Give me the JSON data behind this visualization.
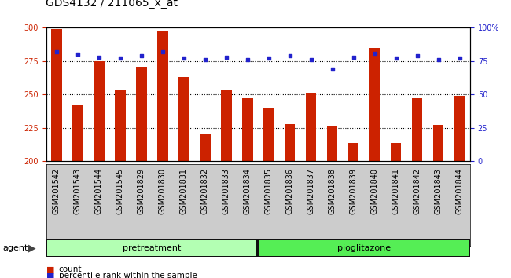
{
  "title": "GDS4132 / 211065_x_at",
  "samples": [
    "GSM201542",
    "GSM201543",
    "GSM201544",
    "GSM201545",
    "GSM201829",
    "GSM201830",
    "GSM201831",
    "GSM201832",
    "GSM201833",
    "GSM201834",
    "GSM201835",
    "GSM201836",
    "GSM201837",
    "GSM201838",
    "GSM201839",
    "GSM201840",
    "GSM201841",
    "GSM201842",
    "GSM201843",
    "GSM201844"
  ],
  "bar_values": [
    299,
    242,
    275,
    253,
    271,
    298,
    263,
    220,
    253,
    247,
    240,
    228,
    251,
    226,
    214,
    285,
    214,
    247,
    227,
    249
  ],
  "percentile_values": [
    82,
    80,
    78,
    77,
    79,
    82,
    77,
    76,
    78,
    76,
    77,
    79,
    76,
    69,
    78,
    81,
    77,
    79,
    76,
    77
  ],
  "bar_color": "#cc2200",
  "dot_color": "#2222cc",
  "ylim_left": [
    200,
    300
  ],
  "ylim_right": [
    0,
    100
  ],
  "yticks_left": [
    200,
    225,
    250,
    275,
    300
  ],
  "yticks_right": [
    0,
    25,
    50,
    75,
    100
  ],
  "yticklabels_right": [
    "0",
    "25",
    "50",
    "75",
    "100%"
  ],
  "group_pretreatment_label": "pretreatment",
  "group_pioglitazone_label": "pioglitazone",
  "group_pretreatment_color": "#b3ffb3",
  "group_pioglitazone_color": "#55ee55",
  "agent_label": "agent",
  "legend_count_label": "count",
  "legend_percentile_label": "percentile rank within the sample",
  "bar_width": 0.5,
  "background_color": "#ffffff",
  "axis_bg_color": "#ffffff",
  "xtick_bg_color": "#cccccc",
  "dotted_line_color": "#000000",
  "title_fontsize": 10,
  "tick_fontsize": 7,
  "label_fontsize": 8
}
